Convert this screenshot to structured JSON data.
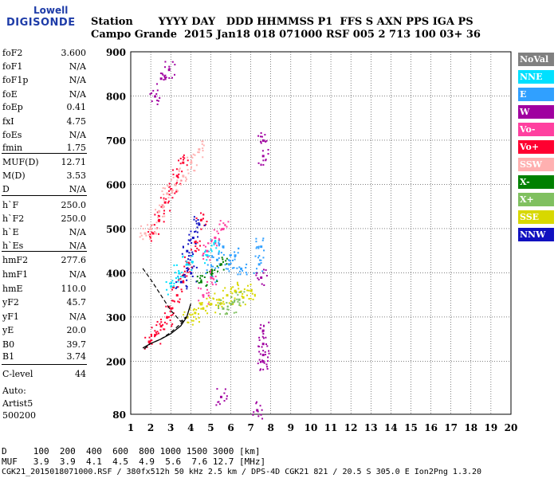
{
  "logo": {
    "line1": "Lowell",
    "line2": "DIGISONDE"
  },
  "header": {
    "labels": "Station       YYYY DAY   DDD HHMMSS P1  FFS S AXN PPS IGA PS",
    "values": "Campo Grande  2015 Jan18 018 071000 RSF 005 2 713 100 03+ 36"
  },
  "scalings": [
    {
      "name": "foF2",
      "value": "3.600"
    },
    {
      "name": "foF1",
      "value": "N/A"
    },
    {
      "name": "foF1p",
      "value": "N/A"
    },
    {
      "name": "foE",
      "value": "N/A"
    },
    {
      "name": "foEp",
      "value": "0.41"
    },
    {
      "name": "fxI",
      "value": "4.75"
    },
    {
      "name": "foEs",
      "value": "N/A"
    },
    {
      "name": "fmin",
      "value": "1.75"
    },
    {
      "name": "MUF(D)",
      "value": "12.71"
    },
    {
      "name": "M(D)",
      "value": "3.53"
    },
    {
      "name": "D",
      "value": "N/A"
    },
    {
      "name": "h`F",
      "value": "250.0"
    },
    {
      "name": "h`F2",
      "value": "250.0"
    },
    {
      "name": "h`E",
      "value": "N/A"
    },
    {
      "name": "h`Es",
      "value": "N/A"
    },
    {
      "name": "hmF2",
      "value": "277.6"
    },
    {
      "name": "hmF1",
      "value": "N/A"
    },
    {
      "name": "hmE",
      "value": "110.0"
    },
    {
      "name": "yF2",
      "value": "45.7"
    },
    {
      "name": "yF1",
      "value": "N/A"
    },
    {
      "name": "yE",
      "value": "20.0"
    },
    {
      "name": "B0",
      "value": "39.7"
    },
    {
      "name": "B1",
      "value": "3.74"
    },
    {
      "name": "C-level",
      "value": "44"
    }
  ],
  "autoscaler": {
    "line1": "Auto:",
    "line2": "Artist5",
    "line3": "500200"
  },
  "footer": {
    "d_row": "D     100  200  400  600  800 1000 1500 3000 [km]",
    "muf_row": "MUF   3.9  3.9  4.1  4.5  4.9  5.6  7.6 12.7 [MHz]",
    "info": "CGK21_2015018071000.RSF / 380fx512h 50 kHz 2.5 km / DPS-4D CGK21 821 / 20.5 S 305.0 E Ion2Png 1.3.20"
  },
  "legend": [
    {
      "label": "NoVal",
      "color": "#808080",
      "text": "#ffffff"
    },
    {
      "label": "NNE",
      "color": "#00e0ff",
      "text": "#ffffff"
    },
    {
      "label": "E",
      "color": "#30a0ff",
      "text": "#ffffff"
    },
    {
      "label": "W",
      "color": "#a000a0",
      "text": "#ffffff"
    },
    {
      "label": "Vo-",
      "color": "#ff40a0",
      "text": "#ffffff"
    },
    {
      "label": "Vo+",
      "color": "#ff0030",
      "text": "#ffffff"
    },
    {
      "label": "SSW",
      "color": "#ffb0b0",
      "text": "#ffffff"
    },
    {
      "label": "X-",
      "color": "#008000",
      "text": "#ffffff"
    },
    {
      "label": "X+",
      "color": "#80c060",
      "text": "#ffffff"
    },
    {
      "label": "SSE",
      "color": "#d8d800",
      "text": "#ffffff"
    },
    {
      "label": "NNW",
      "color": "#1010c0",
      "text": "#ffffff"
    }
  ],
  "chart_data": {
    "type": "scatter",
    "title": "",
    "xlabel": "",
    "ylabel": "",
    "x_ticks": [
      1,
      2,
      3,
      4,
      5,
      6,
      7,
      8,
      9,
      10,
      11,
      12,
      13,
      14,
      15,
      16,
      17,
      18,
      19,
      20
    ],
    "y_ticks": [
      80,
      200,
      300,
      400,
      500,
      600,
      700,
      800,
      900
    ],
    "xlim": [
      1,
      20
    ],
    "ylim": [
      80,
      900
    ],
    "grid": true,
    "legend_position": "right",
    "series": [
      {
        "color": "#ff0030",
        "points": [
          [
            1.9,
            245
          ],
          [
            2.2,
            260
          ],
          [
            2.5,
            280
          ],
          [
            2.8,
            300
          ],
          [
            3.0,
            320
          ],
          [
            3.3,
            350
          ],
          [
            3.6,
            380
          ],
          [
            3.9,
            420
          ],
          [
            4.2,
            470
          ],
          [
            4.5,
            520
          ],
          [
            2.1,
            490
          ],
          [
            2.4,
            520
          ],
          [
            2.7,
            560
          ],
          [
            3.0,
            590
          ],
          [
            3.3,
            620
          ],
          [
            3.6,
            650
          ]
        ]
      },
      {
        "color": "#30a0ff",
        "points": [
          [
            5.0,
            400
          ],
          [
            5.3,
            430
          ],
          [
            5.6,
            460
          ],
          [
            5.9,
            420
          ],
          [
            6.2,
            440
          ],
          [
            6.5,
            410
          ],
          [
            7.4,
            420
          ],
          [
            7.5,
            460
          ]
        ]
      },
      {
        "color": "#d8d800",
        "points": [
          [
            3.8,
            300
          ],
          [
            4.2,
            310
          ],
          [
            4.6,
            320
          ],
          [
            5.0,
            330
          ],
          [
            5.4,
            340
          ],
          [
            5.8,
            350
          ],
          [
            6.2,
            360
          ],
          [
            6.6,
            345
          ],
          [
            7.0,
            360
          ]
        ]
      },
      {
        "color": "#a000a0",
        "points": [
          [
            2.2,
            800
          ],
          [
            2.5,
            840
          ],
          [
            2.9,
            860
          ],
          [
            7.6,
            700
          ],
          [
            7.6,
            665
          ],
          [
            7.6,
            270
          ],
          [
            7.6,
            240
          ],
          [
            7.6,
            215
          ],
          [
            7.6,
            200
          ],
          [
            7.5,
            390
          ],
          [
            5.5,
            120
          ],
          [
            7.3,
            90
          ]
        ]
      },
      {
        "color": "#ffb0b0",
        "points": [
          [
            1.7,
            490
          ],
          [
            2.0,
            500
          ],
          [
            2.4,
            540
          ],
          [
            2.8,
            580
          ],
          [
            3.2,
            600
          ],
          [
            3.6,
            620
          ],
          [
            4.0,
            650
          ],
          [
            4.4,
            680
          ]
        ]
      },
      {
        "color": "#1010c0",
        "points": [
          [
            3.8,
            450
          ],
          [
            4.1,
            480
          ],
          [
            4.4,
            510
          ],
          [
            4.0,
            400
          ],
          [
            3.5,
            380
          ]
        ]
      },
      {
        "color": "#00e0ff",
        "points": [
          [
            3.0,
            370
          ],
          [
            3.4,
            400
          ],
          [
            3.8,
            420
          ],
          [
            4.8,
            440
          ],
          [
            5.2,
            470
          ]
        ]
      },
      {
        "color": "#008000",
        "points": [
          [
            4.5,
            380
          ],
          [
            5.0,
            400
          ],
          [
            5.5,
            420
          ]
        ]
      },
      {
        "color": "#ff40a0",
        "points": [
          [
            4.8,
            450
          ],
          [
            5.2,
            480
          ],
          [
            5.6,
            500
          ],
          [
            4.6,
            350
          ],
          [
            5.0,
            390
          ]
        ]
      },
      {
        "color": "#80c060",
        "points": [
          [
            5.6,
            320
          ],
          [
            6.0,
            330
          ],
          [
            6.4,
            340
          ]
        ]
      }
    ],
    "fitted_curve": [
      [
        1.6,
        230
      ],
      [
        2.0,
        240
      ],
      [
        2.5,
        250
      ],
      [
        3.0,
        262
      ],
      [
        3.5,
        280
      ],
      [
        3.8,
        300
      ],
      [
        4.0,
        330
      ]
    ],
    "model_curve_dashed": [
      [
        1.6,
        410
      ],
      [
        2.0,
        385
      ],
      [
        2.5,
        350
      ],
      [
        3.0,
        315
      ],
      [
        3.5,
        290
      ],
      [
        3.75,
        300
      ],
      [
        3.5,
        285
      ],
      [
        3.0,
        265
      ],
      [
        2.5,
        250
      ],
      [
        2.0,
        240
      ],
      [
        1.6,
        225
      ]
    ]
  }
}
